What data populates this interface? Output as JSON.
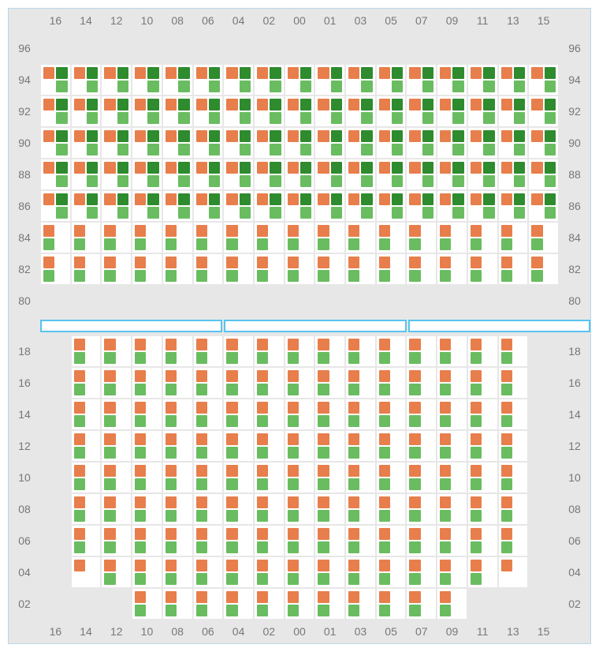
{
  "colors": {
    "orange": "#e87e4b",
    "lightgreen": "#6abc60",
    "darkgreen": "#2e8b2e",
    "cell_bg": "#ffffff",
    "empty_bg": "#e7e7e7",
    "border": "#b8d7e8",
    "divider_border": "#58c3ef",
    "text": "#777777"
  },
  "column_labels": [
    "16",
    "14",
    "12",
    "10",
    "08",
    "06",
    "04",
    "02",
    "00",
    "01",
    "03",
    "05",
    "07",
    "09",
    "11",
    "13",
    "15"
  ],
  "patterns": {
    "A": [
      "orange",
      "darkgreen",
      "",
      "lightgreen"
    ],
    "B": [
      "orange",
      "",
      "lightgreen",
      ""
    ],
    "E": [
      "",
      "",
      "",
      ""
    ]
  },
  "top": {
    "row_labels": [
      "96",
      "94",
      "92",
      "90",
      "88",
      "86",
      "84",
      "82",
      "80"
    ],
    "rows": [
      [
        "E",
        "E",
        "E",
        "E",
        "E",
        "E",
        "E",
        "E",
        "E",
        "E",
        "E",
        "E",
        "E",
        "E",
        "E",
        "E",
        "E"
      ],
      [
        "A",
        "A",
        "A",
        "A",
        "A",
        "A",
        "A",
        "A",
        "A",
        "A",
        "A",
        "A",
        "A",
        "A",
        "A",
        "A",
        "A"
      ],
      [
        "A",
        "A",
        "A",
        "A",
        "A",
        "A",
        "A",
        "A",
        "A",
        "A",
        "A",
        "A",
        "A",
        "A",
        "A",
        "A",
        "A"
      ],
      [
        "A",
        "A",
        "A",
        "A",
        "A",
        "A",
        "A",
        "A",
        "A",
        "A",
        "A",
        "A",
        "A",
        "A",
        "A",
        "A",
        "A"
      ],
      [
        "A",
        "A",
        "A",
        "A",
        "A",
        "A",
        "A",
        "A",
        "A",
        "A",
        "A",
        "A",
        "A",
        "A",
        "A",
        "A",
        "A"
      ],
      [
        "A",
        "A",
        "A",
        "A",
        "A",
        "A",
        "A",
        "A",
        "A",
        "A",
        "A",
        "A",
        "A",
        "A",
        "A",
        "A",
        "A"
      ],
      [
        "B",
        "B",
        "B",
        "B",
        "B",
        "B",
        "B",
        "B",
        "B",
        "B",
        "B",
        "B",
        "B",
        "B",
        "B",
        "B",
        "B"
      ],
      [
        "B",
        "B",
        "B",
        "B",
        "B",
        "B",
        "B",
        "B",
        "B",
        "B",
        "B",
        "B",
        "B",
        "B",
        "B",
        "B",
        "B"
      ],
      [
        "E",
        "E",
        "E",
        "E",
        "E",
        "E",
        "E",
        "E",
        "E",
        "E",
        "E",
        "E",
        "E",
        "E",
        "E",
        "E",
        "E"
      ]
    ]
  },
  "divider_segments": 3,
  "bottom": {
    "row_labels": [
      "18",
      "16",
      "14",
      "12",
      "10",
      "08",
      "06",
      "04",
      "02"
    ],
    "rows": [
      [
        "E",
        "B",
        "B",
        "B",
        "B",
        "B",
        "B",
        "B",
        "B",
        "B",
        "B",
        "B",
        "B",
        "B",
        "B",
        "B",
        "E"
      ],
      [
        "E",
        "B",
        "B",
        "B",
        "B",
        "B",
        "B",
        "B",
        "B",
        "B",
        "B",
        "B",
        "B",
        "B",
        "B",
        "B",
        "E"
      ],
      [
        "E",
        "B",
        "B",
        "B",
        "B",
        "B",
        "B",
        "B",
        "B",
        "B",
        "B",
        "B",
        "B",
        "B",
        "B",
        "B",
        "E"
      ],
      [
        "E",
        "B",
        "B",
        "B",
        "B",
        "B",
        "B",
        "B",
        "B",
        "B",
        "B",
        "B",
        "B",
        "B",
        "B",
        "B",
        "E"
      ],
      [
        "E",
        "B",
        "B",
        "B",
        "B",
        "B",
        "B",
        "B",
        "B",
        "B",
        "B",
        "B",
        "B",
        "B",
        "B",
        "B",
        "E"
      ],
      [
        "E",
        "B",
        "B",
        "B",
        "B",
        "B",
        "B",
        "B",
        "B",
        "B",
        "B",
        "B",
        "B",
        "B",
        "B",
        "B",
        "E"
      ],
      [
        "E",
        "B",
        "B",
        "B",
        "B",
        "B",
        "B",
        "B",
        "B",
        "B",
        "B",
        "B",
        "B",
        "B",
        "B",
        "B",
        "E"
      ],
      [
        "E",
        "O",
        "B",
        "B",
        "B",
        "B",
        "B",
        "B",
        "B",
        "B",
        "B",
        "B",
        "B",
        "B",
        "B",
        "O",
        "E"
      ],
      [
        "E",
        "E",
        "E",
        "B",
        "B",
        "B",
        "B",
        "B",
        "B",
        "B",
        "B",
        "B",
        "B",
        "B",
        "E",
        "E",
        "E"
      ]
    ]
  },
  "patterns_extra": {
    "O": [
      "orange",
      "",
      "",
      ""
    ]
  }
}
